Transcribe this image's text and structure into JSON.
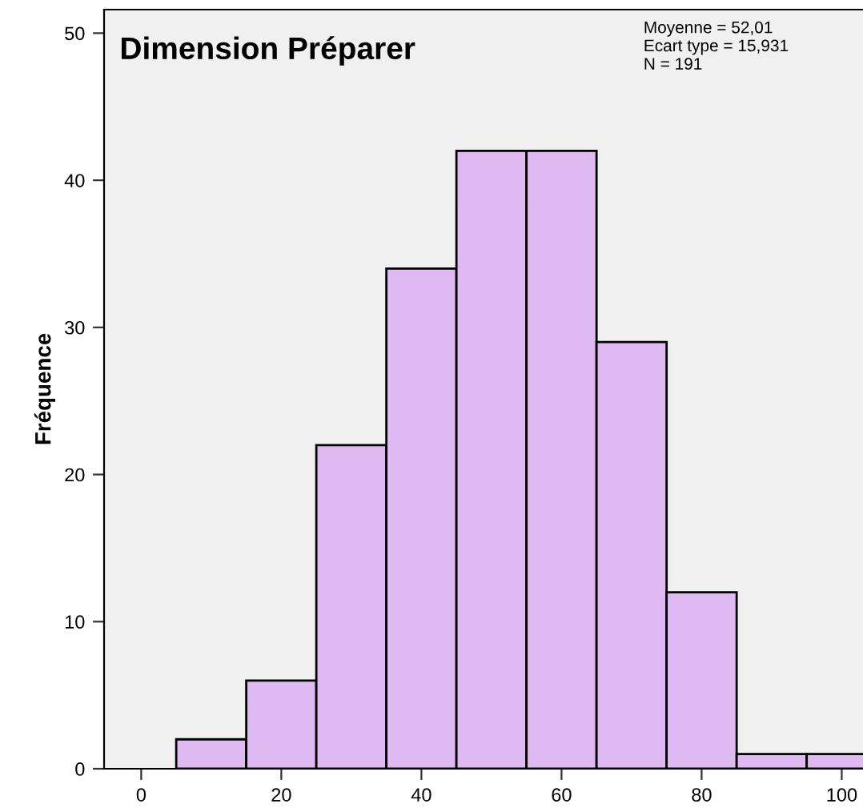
{
  "chart_data": {
    "type": "histogram",
    "title": "Dimension Préparer",
    "ylabel": "Fréquence",
    "bins": [
      5,
      15,
      25,
      35,
      45,
      55,
      65,
      75,
      85,
      95,
      105
    ],
    "values": [
      2,
      6,
      22,
      34,
      42,
      42,
      29,
      12,
      1,
      1
    ],
    "color": "#dfbaf2",
    "xlim": [
      -5.3,
      105.5
    ],
    "xticks": [
      0,
      20,
      40,
      60,
      80,
      100
    ],
    "ylim": [
      0,
      51.6
    ],
    "yticks": [
      0,
      10,
      20,
      30,
      40,
      50
    ],
    "annotations": [
      "Moyenne = 52,01",
      "Ecart type = 15,931",
      "N = 191"
    ],
    "grid": false,
    "legend": false
  }
}
